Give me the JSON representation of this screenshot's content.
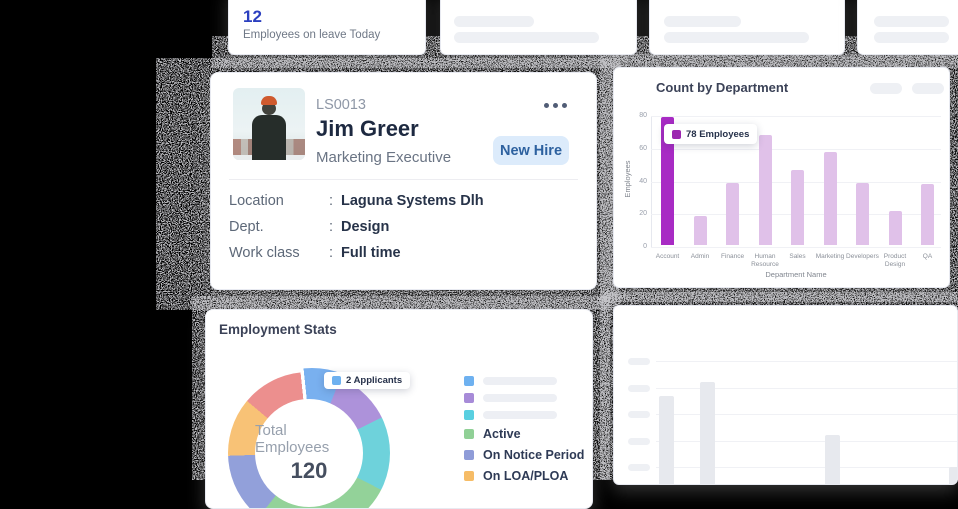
{
  "leave_card": {
    "count": "12",
    "count_color": "#2b3fbf",
    "label": "Employees on leave Today"
  },
  "employee_card": {
    "employee_id": "LS0013",
    "name": "Jim Greer",
    "title": "Marketing Executive",
    "badge_label": "New Hire",
    "separator": ":",
    "details": [
      {
        "label": "Location",
        "value": "Laguna Systems Dlh"
      },
      {
        "label": "Dept.",
        "value": "Design"
      },
      {
        "label": "Work class",
        "value": "Full time"
      }
    ]
  },
  "department_chart": {
    "title": "Count by Department",
    "tooltip_label": "78 Employees",
    "chart_data": {
      "type": "bar",
      "categories": [
        "Account",
        "Admin",
        "Finance",
        "Human Resource",
        "Sales",
        "Marketing",
        "Developers",
        "Product Design",
        "QA"
      ],
      "values": [
        78,
        18,
        38,
        67,
        46,
        57,
        38,
        21,
        37
      ],
      "xlabel": "Department Name",
      "ylabel": "Employees",
      "ylim": [
        0,
        80
      ],
      "yticks": [
        "80",
        "60",
        "40",
        "20",
        "0"
      ],
      "highlight_index": 0,
      "highlight_color": "#a82bc4",
      "bar_color": "#e0c1e9",
      "tooltip_swatch_color": "#9c27b0",
      "grid": true,
      "legend_position": "none"
    }
  },
  "employment_stats": {
    "title": "Employment Stats",
    "tooltip_label": "2 Applicants",
    "tooltip_swatch_color": "#6eb1f0",
    "center_label": "Total Employees",
    "center_value": "120",
    "chart_data": {
      "type": "pie",
      "total": 120,
      "segments": [
        {
          "color": "#79b0ef",
          "from": -6,
          "to": 22,
          "exploded": true
        },
        {
          "color": "#ad92da",
          "from": 22,
          "to": 64
        },
        {
          "color": "#6ed2db",
          "from": 64,
          "to": 117
        },
        {
          "color": "#93d299",
          "from": 117,
          "to": 218
        },
        {
          "color": "#92a0da",
          "from": 218,
          "to": 268
        },
        {
          "color": "#f8c276",
          "from": 268,
          "to": 310
        },
        {
          "color": "#ec8f8e",
          "from": 310,
          "to": 354
        }
      ]
    },
    "legend": [
      {
        "color": "#6eb1f0",
        "label": null
      },
      {
        "color": "#a78bd8",
        "label": null
      },
      {
        "color": "#59cfe0",
        "label": null
      },
      {
        "color": "#90d096",
        "label": "Active"
      },
      {
        "color": "#8f9cd8",
        "label": "On Notice Period"
      },
      {
        "color": "#f6bc66",
        "label": "On LOA/PLOA"
      }
    ]
  }
}
